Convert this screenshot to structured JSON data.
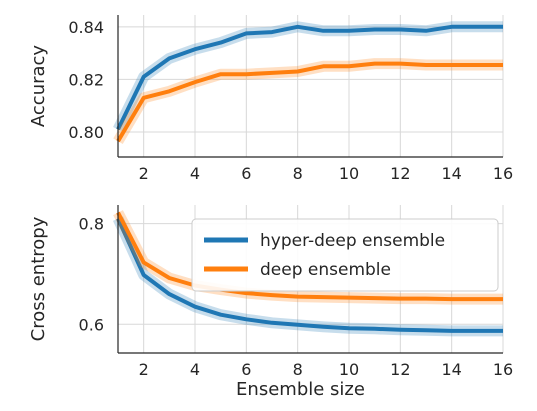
{
  "chart_data": [
    {
      "type": "line",
      "title": "",
      "xlabel": "",
      "ylabel": "Accuracy",
      "x": [
        1,
        2,
        3,
        4,
        5,
        6,
        7,
        8,
        9,
        10,
        11,
        12,
        13,
        14,
        15,
        16
      ],
      "xlim": [
        1,
        16
      ],
      "ylim": [
        0.7905,
        0.8445
      ],
      "xticks": [
        2,
        4,
        6,
        8,
        10,
        12,
        14,
        16
      ],
      "yticks": [
        0.8,
        0.82,
        0.84
      ],
      "ytick_labels": [
        "0.80",
        "0.82",
        "0.84"
      ],
      "grid": true,
      "series": [
        {
          "name": "hyper-deep ensemble",
          "color": "#1f77b4",
          "values": [
            0.801,
            0.821,
            0.828,
            0.8315,
            0.834,
            0.8375,
            0.838,
            0.84,
            0.8385,
            0.8385,
            0.839,
            0.839,
            0.8385,
            0.84,
            0.84,
            0.84
          ]
        },
        {
          "name": "deep ensemble",
          "color": "#ff7f0e",
          "values": [
            0.7965,
            0.813,
            0.8155,
            0.819,
            0.822,
            0.822,
            0.8225,
            0.823,
            0.825,
            0.825,
            0.826,
            0.826,
            0.8255,
            0.8255,
            0.8255,
            0.8255
          ]
        }
      ]
    },
    {
      "type": "line",
      "title": "",
      "xlabel": "Ensemble size",
      "ylabel": "Cross entropy",
      "x": [
        1,
        2,
        3,
        4,
        5,
        6,
        7,
        8,
        9,
        10,
        11,
        12,
        13,
        14,
        15,
        16
      ],
      "xlim": [
        1,
        16
      ],
      "ylim": [
        0.543,
        0.837
      ],
      "xticks": [
        2,
        4,
        6,
        8,
        10,
        12,
        14,
        16
      ],
      "yticks": [
        0.6,
        0.8
      ],
      "ytick_labels": [
        "0.6",
        "0.8"
      ],
      "grid": true,
      "legend": "top-right",
      "series": [
        {
          "name": "hyper-deep ensemble",
          "color": "#1f77b4",
          "values": [
            0.81,
            0.698,
            0.66,
            0.635,
            0.619,
            0.61,
            0.603,
            0.599,
            0.595,
            0.592,
            0.591,
            0.589,
            0.588,
            0.587,
            0.587,
            0.587
          ]
        },
        {
          "name": "deep ensemble",
          "color": "#ff7f0e",
          "values": [
            0.822,
            0.723,
            0.692,
            0.677,
            0.669,
            0.662,
            0.658,
            0.655,
            0.654,
            0.653,
            0.652,
            0.651,
            0.651,
            0.65,
            0.65,
            0.65
          ]
        }
      ]
    }
  ]
}
